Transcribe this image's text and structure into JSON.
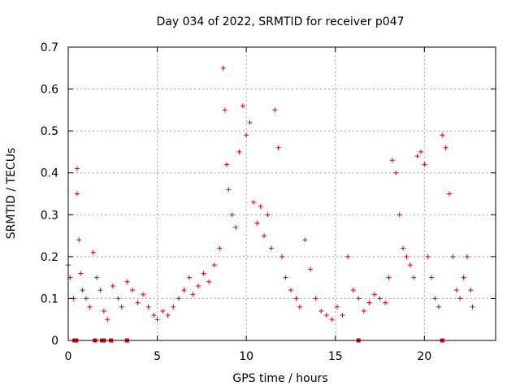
{
  "chart_data": {
    "type": "scatter",
    "title": "Day 034 of 2022, SRMTID for receiver p047",
    "xlabel": "GPS time / hours",
    "ylabel": "SRMTID / TECUs",
    "xlim": [
      0,
      24
    ],
    "ylim": [
      0,
      0.7
    ],
    "xticks": [
      0,
      5,
      10,
      15,
      20
    ],
    "yticks": [
      0,
      0.1,
      0.2,
      0.3,
      0.4,
      0.5,
      0.6,
      0.7
    ],
    "grid": true,
    "marker": "plus",
    "color": "#e00000",
    "series": [
      {
        "name": "SRMTID",
        "x": [
          0.0,
          0.1,
          0.3,
          0.5,
          0.5,
          0.6,
          0.7,
          0.8,
          1.0,
          1.2,
          1.4,
          1.6,
          1.8,
          2.0,
          2.2,
          2.5,
          2.8,
          3.0,
          3.3,
          3.6,
          3.9,
          4.2,
          4.5,
          4.8,
          5.0,
          5.3,
          5.6,
          5.9,
          6.2,
          6.5,
          6.8,
          7.0,
          7.3,
          7.6,
          7.9,
          8.2,
          8.5,
          8.7,
          8.8,
          8.9,
          9.0,
          9.2,
          9.4,
          9.6,
          9.8,
          10.0,
          10.2,
          10.4,
          10.6,
          10.8,
          11.0,
          11.2,
          11.4,
          11.6,
          11.8,
          12.0,
          12.2,
          12.5,
          12.8,
          13.0,
          13.3,
          13.6,
          13.9,
          14.2,
          14.5,
          14.8,
          15.1,
          15.4,
          15.7,
          16.0,
          16.3,
          16.6,
          16.9,
          17.2,
          17.5,
          17.8,
          18.0,
          18.2,
          18.4,
          18.6,
          18.8,
          19.0,
          19.2,
          19.4,
          19.6,
          19.8,
          20.0,
          20.2,
          20.4,
          20.6,
          20.8,
          21.0,
          21.2,
          21.4,
          21.6,
          21.8,
          22.0,
          22.2,
          22.4,
          22.6,
          22.7
        ],
        "y": [
          0.18,
          0.15,
          0.1,
          0.41,
          0.35,
          0.24,
          0.16,
          0.12,
          0.1,
          0.08,
          0.21,
          0.15,
          0.12,
          0.07,
          0.05,
          0.13,
          0.1,
          0.08,
          0.14,
          0.12,
          0.09,
          0.11,
          0.08,
          0.06,
          0.05,
          0.07,
          0.06,
          0.08,
          0.1,
          0.12,
          0.15,
          0.11,
          0.13,
          0.16,
          0.14,
          0.18,
          0.22,
          0.65,
          0.55,
          0.42,
          0.36,
          0.3,
          0.27,
          0.45,
          0.56,
          0.49,
          0.52,
          0.33,
          0.28,
          0.32,
          0.25,
          0.3,
          0.22,
          0.55,
          0.46,
          0.2,
          0.15,
          0.12,
          0.1,
          0.08,
          0.24,
          0.17,
          0.1,
          0.07,
          0.06,
          0.05,
          0.08,
          0.06,
          0.2,
          0.12,
          0.1,
          0.07,
          0.09,
          0.11,
          0.1,
          0.09,
          0.15,
          0.43,
          0.4,
          0.3,
          0.22,
          0.2,
          0.18,
          0.15,
          0.44,
          0.45,
          0.42,
          0.2,
          0.15,
          0.1,
          0.08,
          0.49,
          0.46,
          0.35,
          0.2,
          0.12,
          0.1,
          0.15,
          0.2,
          0.12,
          0.08
        ]
      }
    ],
    "zero_markers_x": [
      0.35,
      0.45,
      1.5,
      1.9,
      2.0,
      2.4,
      3.3,
      16.3,
      21.0
    ]
  }
}
